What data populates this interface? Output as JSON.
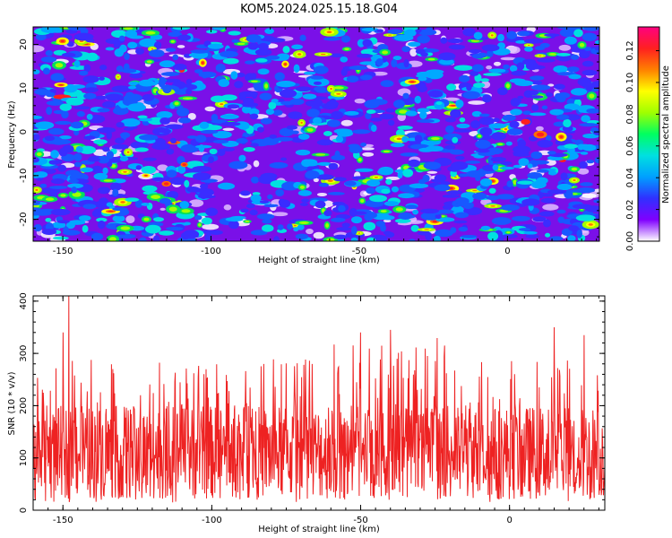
{
  "title": "KOM5.2024.025.15.18.G04",
  "chart_data": [
    {
      "type": "heatmap",
      "xlabel": "Height of straight line (km)",
      "ylabel": "Frequency (Hz)",
      "xlim": [
        -160,
        31
      ],
      "ylim": [
        -25,
        24
      ],
      "xticks": [
        -150,
        -100,
        -50,
        0
      ],
      "yticks": [
        -20,
        -10,
        0,
        10,
        20
      ],
      "colorbar": {
        "label": "Normalized spectral amplitude",
        "range": [
          0.0,
          0.135
        ],
        "ticks": [
          "0.00",
          "0.02",
          "0.04",
          "0.06",
          "0.08",
          "0.10",
          "0.12"
        ],
        "colors": [
          "#ffffff",
          "#8000ff",
          "#3030ff",
          "#00a0ff",
          "#00e0e0",
          "#00ff60",
          "#a0ff00",
          "#ffff00",
          "#ff8000",
          "#ff2020",
          "#ff0080"
        ]
      }
    },
    {
      "type": "line",
      "xlabel": "Height of straight line (km)",
      "ylabel": "SNR (10 * v/v)",
      "xlim": [
        -160,
        32
      ],
      "ylim": [
        0,
        410
      ],
      "xticks": [
        -150,
        -100,
        -50,
        0
      ],
      "yticks": [
        0,
        100,
        200,
        300,
        400
      ],
      "color": "#ee2222",
      "series_summary": {
        "typical_range": [
          50,
          200
        ],
        "notable_peaks": [
          {
            "x": -148,
            "y": 410
          },
          {
            "x": -150,
            "y": 340
          },
          {
            "x": -50,
            "y": 340
          },
          {
            "x": -40,
            "y": 345
          },
          {
            "x": 15,
            "y": 350
          },
          {
            "x": 25,
            "y": 335
          }
        ]
      }
    }
  ]
}
